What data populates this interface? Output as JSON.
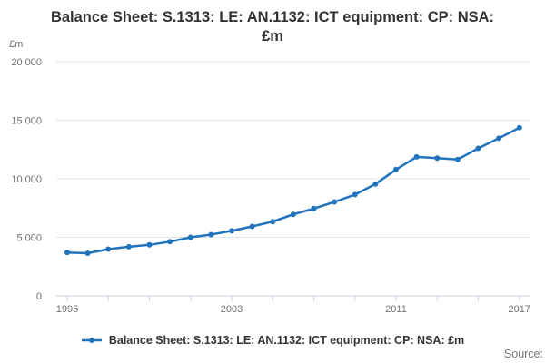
{
  "title": "Balance Sheet: S.1313: LE: AN.1132: ICT equipment: CP: NSA: £m",
  "unit_label": "£m",
  "source_label": "Source:",
  "legend": {
    "label": "Balance Sheet: S.1313: LE: AN.1132: ICT equipment: CP: NSA: £m"
  },
  "colors": {
    "series": "#2073bc",
    "grid": "#e4e4e4",
    "axis": "#c9d4e3",
    "tick_label": "#707070",
    "title": "#333333",
    "source": "#767676"
  },
  "chart_data": {
    "type": "line",
    "title": "Balance Sheet: S.1313: LE: AN.1132: ICT equipment: CP: NSA: £m",
    "xlabel": "",
    "ylabel": "£m",
    "grid": true,
    "legend_position": "bottom",
    "xlim": [
      1994.47,
      2017.54
    ],
    "ylim": [
      0,
      20000
    ],
    "x": [
      1995,
      1996,
      1997,
      1998,
      1999,
      2000,
      2001,
      2002,
      2003,
      2004,
      2005,
      2006,
      2007,
      2008,
      2009,
      2010,
      2011,
      2012,
      2013,
      2014,
      2015,
      2016,
      2017
    ],
    "series": [
      {
        "name": "Balance Sheet: S.1313: LE: AN.1132: ICT equipment: CP: NSA: £m",
        "values": [
          3700,
          3640,
          3990,
          4190,
          4360,
          4630,
          5000,
          5230,
          5550,
          5930,
          6340,
          6960,
          7460,
          8020,
          8650,
          9550,
          10790,
          11870,
          11770,
          11650,
          12600,
          13460,
          14360
        ]
      }
    ],
    "y_ticks": [
      {
        "value": 0,
        "label": "0"
      },
      {
        "value": 5000,
        "label": "5 000"
      },
      {
        "value": 10000,
        "label": "10 000"
      },
      {
        "value": 15000,
        "label": "15 000"
      },
      {
        "value": 20000,
        "label": "20 000"
      }
    ],
    "x_minor_tick_start": 1995,
    "x_minor_tick_end": 2017,
    "x_minor_tick_step": 2,
    "x_labeled_ticks": [
      1995,
      2003,
      2011,
      2017
    ]
  }
}
